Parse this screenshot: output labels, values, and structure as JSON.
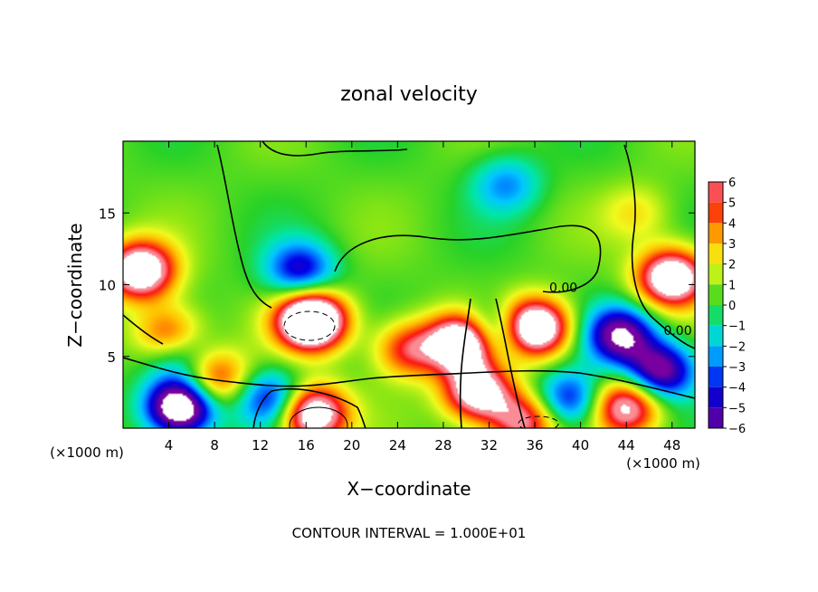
{
  "chart_data": {
    "type": "heatmap",
    "title": "zonal velocity",
    "xlabel": "X−coordinate",
    "ylabel": "Z−coordinate",
    "x_unit_label_left": "(×1000 m)",
    "x_unit_label_right": "(×1000 m)",
    "footer": "CONTOUR INTERVAL = 1.000E+01",
    "xlim": [
      0,
      50
    ],
    "ylim": [
      0,
      20
    ],
    "x_ticks": [
      4,
      8,
      12,
      16,
      20,
      24,
      28,
      32,
      36,
      40,
      44,
      48
    ],
    "y_ticks": [
      5,
      10,
      15
    ],
    "colorbar": {
      "range": [
        -6,
        6
      ],
      "ticks": [
        6,
        5,
        4,
        3,
        2,
        1,
        0,
        -1,
        -2,
        -3,
        -4,
        -5,
        -6
      ],
      "tick_labels": [
        "6",
        "5",
        "4",
        "3",
        "2",
        "1",
        "0",
        "−1",
        "−2",
        "−3",
        "−4",
        "−5",
        "−6"
      ]
    },
    "contour_labels": [
      {
        "text": "0.00",
        "x": 38.5,
        "y": 9.5
      },
      {
        "text": "0.00",
        "x": 48.5,
        "y": 6.5
      }
    ],
    "features": [
      {
        "x": 1.5,
        "z": 11,
        "sign": "+",
        "peak": 9
      },
      {
        "x": 48,
        "z": 10.5,
        "sign": "+",
        "peak": 9
      },
      {
        "x": 16.5,
        "z": 7.5,
        "sign": "+",
        "peak": 12
      },
      {
        "x": 30,
        "z": 6,
        "sign": "+",
        "peak": 12
      },
      {
        "x": 36,
        "z": 7,
        "sign": "+",
        "peak": 10
      },
      {
        "x": 25,
        "z": 5.5,
        "sign": "+",
        "peak": 5
      },
      {
        "x": 16.5,
        "z": 1,
        "sign": "+",
        "peak": 9
      },
      {
        "x": 31,
        "z": 2.5,
        "sign": "+",
        "peak": 8
      },
      {
        "x": 44,
        "z": 1.5,
        "sign": "+",
        "peak": 7
      },
      {
        "x": 35,
        "z": 0.5,
        "sign": "+",
        "peak": 6
      },
      {
        "x": 8,
        "z": 3.5,
        "sign": "+",
        "peak": 5
      },
      {
        "x": 4,
        "z": 6.5,
        "sign": "+",
        "peak": 5
      },
      {
        "x": 15.5,
        "z": 11,
        "sign": "-",
        "peak": 5
      },
      {
        "x": 33.5,
        "z": 17,
        "sign": "-",
        "peak": 3
      },
      {
        "x": 32,
        "z": 6.5,
        "sign": "-",
        "peak": 7
      },
      {
        "x": 43.5,
        "z": 6.5,
        "sign": "-",
        "peak": 7
      },
      {
        "x": 47,
        "z": 4,
        "sign": "-",
        "peak": 7
      },
      {
        "x": 5,
        "z": 1.5,
        "sign": "-",
        "peak": 10
      },
      {
        "x": 13,
        "z": 2,
        "sign": "-",
        "peak": 5
      },
      {
        "x": 39,
        "z": 2,
        "sign": "-",
        "peak": 5
      },
      {
        "x": 5,
        "z": 5,
        "sign": "-",
        "peak": 3
      },
      {
        "x": 45,
        "z": 15,
        "sign": "+",
        "peak": 2
      }
    ]
  }
}
